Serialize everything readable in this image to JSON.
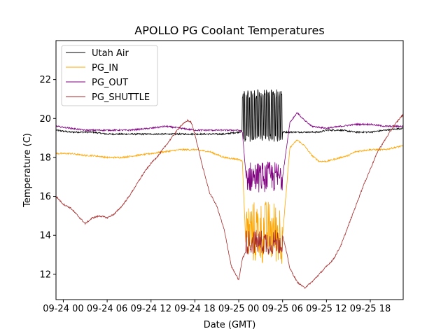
{
  "chart_data": {
    "type": "line",
    "title": "APOLLO PG Coolant Temperatures",
    "xlabel": "Date (GMT)",
    "ylabel": "Temperature (C)",
    "x_unit": "hours since 09-24 00",
    "xlim": [
      -1,
      46.5
    ],
    "ylim": [
      10.7,
      24.0
    ],
    "grid": false,
    "legend_position": "top-left",
    "x_ticks": [
      {
        "value": 0,
        "label": "09-24 00"
      },
      {
        "value": 6,
        "label": "09-24 06"
      },
      {
        "value": 12,
        "label": "09-24 12"
      },
      {
        "value": 18,
        "label": "09-24 18"
      },
      {
        "value": 24,
        "label": "09-25 00"
      },
      {
        "value": 30,
        "label": "09-25 06"
      },
      {
        "value": 36,
        "label": "09-25 12"
      },
      {
        "value": 42,
        "label": "09-25 18"
      }
    ],
    "y_ticks": [
      12,
      14,
      16,
      18,
      20,
      22
    ],
    "series": [
      {
        "name": "Utah Air",
        "color": "#000000",
        "x": [
          -1,
          1,
          2,
          4,
          6,
          8,
          10,
          12,
          14,
          16,
          18,
          20,
          22,
          24,
          25,
          26,
          27,
          28,
          29,
          30,
          31,
          32,
          33,
          34,
          35,
          36,
          38,
          40,
          42,
          44,
          46.5
        ],
        "y": [
          19.4,
          19.3,
          19.3,
          19.3,
          19.2,
          19.2,
          19.2,
          19.2,
          19.2,
          19.2,
          19.2,
          19.2,
          19.2,
          19.3,
          19.4,
          19.4,
          19.2,
          19.3,
          19.2,
          19.3,
          19.3,
          19.3,
          19.3,
          19.3,
          19.3,
          19.4,
          19.4,
          19.3,
          19.3,
          19.4,
          19.5
        ],
        "spikes": {
          "start": 24.5,
          "end": 30,
          "period": 0.23,
          "low": 18.8,
          "high": 21.5
        }
      },
      {
        "name": "PG_IN",
        "color": "#ffa500",
        "x": [
          -1,
          1,
          3,
          4,
          6,
          8,
          10,
          12,
          14,
          16,
          18,
          20,
          22,
          24,
          24.5,
          25,
          30,
          31,
          32,
          33,
          34,
          35,
          36,
          37,
          38,
          39,
          40,
          42,
          44,
          46.5
        ],
        "y": [
          18.2,
          18.2,
          18.1,
          18.1,
          18.0,
          18.0,
          18.1,
          18.2,
          18.3,
          18.4,
          18.4,
          18.3,
          18.0,
          17.9,
          17.8,
          13.2,
          14.0,
          18.5,
          18.9,
          18.6,
          18.1,
          17.8,
          17.8,
          17.9,
          18.0,
          18.1,
          18.3,
          18.4,
          18.4,
          18.6
        ],
        "noise_band": {
          "start": 25,
          "end": 30,
          "low": 12.5,
          "high": 15.8
        }
      },
      {
        "name": "PG_OUT",
        "color": "#800080",
        "x": [
          -1,
          1,
          3,
          6,
          9,
          12,
          14,
          16,
          18,
          20,
          22,
          24,
          24.5,
          25,
          30,
          31,
          32,
          33,
          34,
          36,
          38,
          40,
          42,
          44,
          46.5
        ],
        "y": [
          19.6,
          19.5,
          19.4,
          19.4,
          19.4,
          19.5,
          19.6,
          19.5,
          19.4,
          19.4,
          19.4,
          19.4,
          19.3,
          17.0,
          17.0,
          19.8,
          20.3,
          19.9,
          19.6,
          19.5,
          19.6,
          19.7,
          19.7,
          19.6,
          19.6
        ],
        "noise_band": {
          "start": 25,
          "end": 30,
          "low": 16.2,
          "high": 17.8
        }
      },
      {
        "name": "PG_SHUTTLE",
        "color": "#a52a2a",
        "x": [
          -1,
          0,
          1,
          2,
          3,
          4,
          5,
          6,
          7,
          8,
          9,
          10,
          11,
          12,
          13,
          14,
          15,
          16,
          17,
          17.5,
          18,
          19,
          20,
          21,
          22,
          23,
          24,
          24.5,
          25,
          26,
          27,
          28,
          29,
          30,
          30.5,
          31,
          32,
          33,
          34,
          35,
          36,
          37,
          38,
          39,
          40,
          41,
          42,
          43,
          44,
          45,
          46,
          46.5
        ],
        "y": [
          16.0,
          15.6,
          15.4,
          15.0,
          14.6,
          14.9,
          15.0,
          14.9,
          15.1,
          15.5,
          16.0,
          16.6,
          17.2,
          17.7,
          18.1,
          18.6,
          19.1,
          19.6,
          19.9,
          19.8,
          19.2,
          17.6,
          16.2,
          15.5,
          14.3,
          12.4,
          11.7,
          12.8,
          13.2,
          13.7,
          13.7,
          13.9,
          13.9,
          14.0,
          13.2,
          12.3,
          11.6,
          11.3,
          11.6,
          12.0,
          12.4,
          12.8,
          13.5,
          14.5,
          15.5,
          16.5,
          17.4,
          18.3,
          18.9,
          19.5,
          20.0,
          20.2
        ],
        "noise_band": {
          "start": 25,
          "end": 30,
          "low": 13.0,
          "high": 14.3
        }
      }
    ]
  }
}
